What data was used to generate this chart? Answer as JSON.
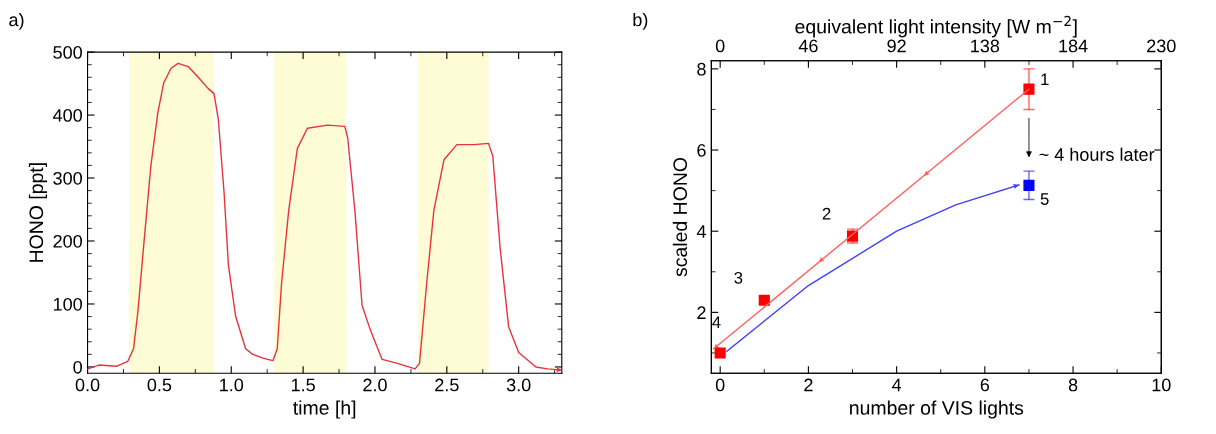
{
  "chart_data": [
    {
      "type": "line",
      "title": "a)",
      "xlabel": "time [h]",
      "ylabel": "HONO [ppt]",
      "xlim": [
        0,
        3.3
      ],
      "ylim": [
        -10,
        500
      ],
      "xticks": [
        {
          "value": 0,
          "label": "0.0"
        },
        {
          "value": 0.5,
          "label": "0.5"
        },
        {
          "value": 1,
          "label": "1.0"
        },
        {
          "value": 1.5,
          "label": "1.5"
        },
        {
          "value": 2,
          "label": "2.0"
        },
        {
          "value": 2.5,
          "label": "2.5"
        },
        {
          "value": 3,
          "label": "3.0"
        }
      ],
      "yticks": [
        0,
        100,
        200,
        300,
        400,
        500
      ],
      "grid": false,
      "legend": false,
      "bands": [
        {
          "axis": "x",
          "from": 0.29,
          "to": 0.88,
          "color": "#fdfcd4"
        },
        {
          "axis": "x",
          "from": 1.3,
          "to": 1.8,
          "color": "#fdfcd4"
        },
        {
          "axis": "x",
          "from": 2.3,
          "to": 2.79,
          "color": "#fdfcd4"
        }
      ],
      "series": [
        {
          "color": "#e8323c",
          "x": [
            0,
            0.08,
            0.2,
            0.28,
            0.32,
            0.35,
            0.39,
            0.44,
            0.49,
            0.53,
            0.58,
            0.63,
            0.7,
            0.77,
            0.84,
            0.88,
            0.91,
            0.95,
            0.98,
            1.03,
            1.1,
            1.15,
            1.22,
            1.29,
            1.32,
            1.35,
            1.4,
            1.46,
            1.53,
            1.67,
            1.79,
            1.81,
            1.86,
            1.91,
            1.96,
            1.99,
            2.05,
            2.15,
            2.28,
            2.31,
            2.36,
            2.41,
            2.48,
            2.57,
            2.69,
            2.79,
            2.82,
            2.87,
            2.93,
            3.0,
            3.12,
            3.2,
            3.3
          ],
          "values": [
            -3,
            3,
            1,
            9,
            29,
            87,
            191,
            318,
            405,
            451,
            474,
            482,
            477,
            460,
            442,
            434,
            393,
            277,
            162,
            81,
            29,
            20,
            14,
            10,
            29,
            133,
            249,
            347,
            379,
            384,
            382,
            364,
            249,
            98,
            64,
            46,
            12,
            6,
            -3,
            6,
            133,
            249,
            329,
            353,
            353,
            355,
            335,
            191,
            64,
            23,
            0,
            -3,
            -5
          ]
        }
      ]
    },
    {
      "type": "scatter",
      "title": "b)",
      "xlabel": "number of VIS lights",
      "ylabel": "scaled HONO",
      "x2label": "equivalent light intensity [W m$^{−2}$]",
      "xlim": [
        -0.2,
        10
      ],
      "ylim": [
        0.5,
        8.2
      ],
      "xticks": [
        0,
        2,
        4,
        6,
        8,
        10
      ],
      "yticks": [
        2,
        4,
        6,
        8
      ],
      "x2lim": [
        -4.6,
        230
      ],
      "x2ticks": [
        0,
        46,
        92,
        138,
        184,
        230
      ],
      "grid": false,
      "legend": false,
      "marker": "square",
      "series": [
        {
          "type": "scatter",
          "color": "#ff0000",
          "x": [
            0,
            1,
            3,
            7
          ],
          "values": [
            1.0,
            2.3,
            3.88,
            7.5
          ],
          "errors": [
            null,
            0.07,
            0.17,
            0.5
          ]
        },
        {
          "type": "line",
          "color": "#ff6060",
          "marker": "none",
          "x": [
            7,
            -0.15
          ],
          "values": [
            7.5,
            1.1
          ]
        },
        {
          "type": "line",
          "color": "#4040ff",
          "marker": "none",
          "x": [
            0.15,
            2.0,
            4.0,
            5.34,
            6.77
          ],
          "values": [
            1.04,
            2.66,
            4.0,
            4.65,
            5.14
          ]
        },
        {
          "type": "scatter",
          "color": "#0000ff",
          "x": [
            7
          ],
          "values": [
            5.13
          ],
          "errors": [
            0.35
          ]
        }
      ],
      "annotations": [
        {
          "text": "1",
          "x": 7,
          "y": 7.5
        },
        {
          "text": "2",
          "x": 3,
          "y": 3.88
        },
        {
          "text": "3",
          "x": 1,
          "y": 2.3
        },
        {
          "text": "4",
          "x": 0,
          "y": 1.0
        },
        {
          "text": "5",
          "x": 7,
          "y": 5.13
        },
        {
          "text": "~ 4 hours later",
          "x": 7,
          "y": 5.85
        }
      ]
    }
  ]
}
